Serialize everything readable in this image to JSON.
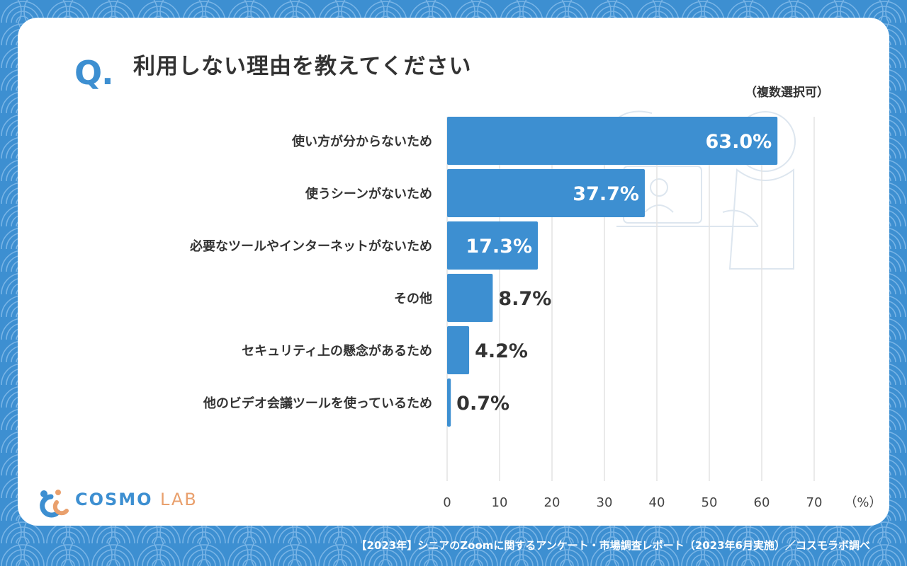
{
  "header": {
    "q_mark": "Q.",
    "title": "利用しない理由を教えてください",
    "note": "（複数選択可）"
  },
  "chart_data": {
    "type": "bar",
    "orientation": "horizontal",
    "categories": [
      "使い方が分からないため",
      "使うシーンがないため",
      "必要なツールやインターネットがないため",
      "その他",
      "セキュリティ上の懸念があるため",
      "他のビデオ会議ツールを使っているため"
    ],
    "values": [
      63.0,
      37.7,
      17.3,
      8.7,
      4.2,
      0.7
    ],
    "value_labels": [
      "63.0%",
      "37.7%",
      "17.3%",
      "8.7%",
      "4.2%",
      "0.7%"
    ],
    "xlim": [
      0,
      70
    ],
    "xticks": [
      "0",
      "10",
      "20",
      "30",
      "40",
      "50",
      "60",
      "70"
    ],
    "unit_label": "（%）",
    "grid": true,
    "bar_color": "#3d8fd1"
  },
  "logo": {
    "part1": "COSMO",
    "part2": "LAB"
  },
  "footer": {
    "text": "【2023年】シニアのZoomに関するアンケート・市場調査レポート（2023年6月実施）／コスモラボ調べ"
  },
  "colors": {
    "accent": "#3d8fd1",
    "background": "#3d8fd1",
    "text": "#333333",
    "logo_orange": "#e9a06d"
  }
}
